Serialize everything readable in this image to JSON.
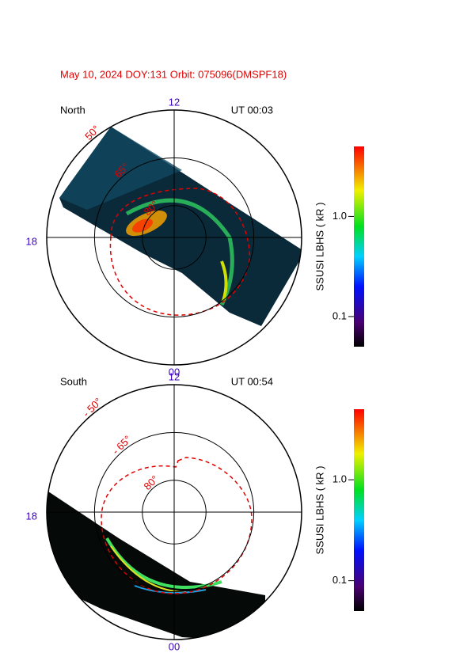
{
  "title": "May 10, 2024 DOY:131   Orbit: 075096(DMSPF18)",
  "panels": [
    {
      "type": "polar",
      "hemisphere": "North",
      "time": "UT 00:03",
      "mlt_labels": [
        "12",
        "18",
        "00"
      ],
      "lat_circles": [
        {
          "value": 50,
          "label": "50°"
        },
        {
          "value": 65,
          "label": "65°"
        },
        {
          "value": 80,
          "label": "80°"
        }
      ],
      "colorbar": {
        "label": "SSUSI LBHS  ( kR )",
        "scale": "log",
        "lim": [
          0.05,
          5
        ],
        "ticks": [
          {
            "value": 1,
            "label": "1.0"
          },
          0.1
        ]
      }
    },
    {
      "type": "polar",
      "hemisphere": "South",
      "time": "UT 00:54",
      "mlt_labels": [
        "12",
        "18",
        "00"
      ],
      "lat_circles": [
        {
          "value": -50,
          "label": "- 50°"
        },
        {
          "value": -65,
          "label": "- 65°"
        },
        {
          "value": -80,
          "label": "80°"
        }
      ],
      "colorbar": {
        "label": "SSUSI LBHS  ( kR )",
        "scale": "log",
        "lim": [
          0.05,
          5
        ],
        "ticks": [
          {
            "value": 1,
            "label": "1.0"
          },
          0.1
        ]
      }
    }
  ]
}
